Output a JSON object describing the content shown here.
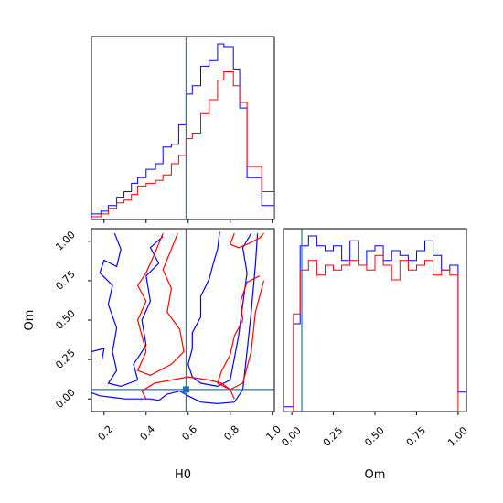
{
  "chart_data": {
    "type": "corner",
    "parameters": [
      "H0",
      "Om"
    ],
    "truth": {
      "H0": 0.59,
      "Om": 0.06
    },
    "colors": {
      "series_a": "#0000ff",
      "series_b": "#ff0000",
      "truth": "#1f77b4"
    },
    "panels": [
      {
        "id": "hist-H0",
        "type": "step-histogram",
        "xlim": [
          0.14,
          1.01
        ],
        "bin_edges": [
          0.14,
          0.185,
          0.22,
          0.26,
          0.295,
          0.33,
          0.36,
          0.4,
          0.445,
          0.48,
          0.52,
          0.555,
          0.59,
          0.62,
          0.66,
          0.7,
          0.74,
          0.77,
          0.815,
          0.845,
          0.88,
          0.95,
          1.01
        ],
        "series": [
          {
            "name": "",
            "color": "#0000ff",
            "values": [
              2,
              3,
              5,
              8,
              10,
              13,
              15,
              18,
              20,
              26,
              27,
              34,
              45,
              48,
              55,
              57,
              63,
              62,
              54,
              40,
              15,
              5
            ]
          },
          {
            "name": "",
            "color": "#ff0000",
            "values": [
              1,
              2,
              4,
              6,
              7,
              9,
              12,
              13,
              14,
              16,
              20,
              23,
              29,
              31,
              38,
              43,
              50,
              53,
              48,
              42,
              19,
              10
            ]
          }
        ]
      },
      {
        "id": "hist-Om",
        "type": "step-histogram",
        "xlim": [
          -0.05,
          1.05
        ],
        "bin_edges": [
          -0.05,
          0.01,
          0.05,
          0.1,
          0.15,
          0.2,
          0.25,
          0.3,
          0.35,
          0.4,
          0.45,
          0.5,
          0.55,
          0.6,
          0.65,
          0.7,
          0.75,
          0.8,
          0.85,
          0.9,
          0.95,
          1.0,
          1.05
        ],
        "series": [
          {
            "name": "",
            "color": "#0000ff",
            "values": [
              1,
              18,
              34,
              36,
              34,
              33,
              34,
              31,
              35,
              30,
              33,
              34,
              31,
              33,
              32,
              31,
              33,
              35,
              32,
              29,
              30,
              4
            ]
          },
          {
            "name": "",
            "color": "#ff0000",
            "values": [
              0,
              20,
              29,
              31,
              28,
              30,
              29,
              30,
              31,
              30,
              29,
              32,
              30,
              27,
              31,
              29,
              30,
              31,
              28,
              29,
              28,
              0
            ]
          }
        ]
      },
      {
        "id": "contour-H0-Om",
        "type": "contour",
        "x_param": "H0",
        "y_param": "Om",
        "xlim": [
          0.14,
          1.01
        ],
        "ylim": [
          -0.08,
          1.08
        ],
        "series": [
          {
            "name": "",
            "color": "#0000ff",
            "contours": [
              [
                [
                  0.12,
                  0.05
                ],
                [
                  0.18,
                  0.02
                ],
                [
                  0.3,
                  0.0
                ],
                [
                  0.42,
                  0.0
                ],
                [
                  0.46,
                  -0.01
                ],
                [
                  0.5,
                  0.03
                ],
                [
                  0.56,
                  0.05
                ],
                [
                  0.6,
                  0.02
                ],
                [
                  0.66,
                  -0.02
                ],
                [
                  0.74,
                  -0.03
                ],
                [
                  0.82,
                  -0.02
                ],
                [
                  0.86,
                  0.06
                ],
                [
                  0.88,
                  0.3
                ],
                [
                  0.9,
                  0.55
                ],
                [
                  0.92,
                  0.85
                ],
                [
                  0.93,
                  1.05
                ]
              ],
              [
                [
                  0.25,
                  1.05
                ],
                [
                  0.28,
                  0.95
                ],
                [
                  0.26,
                  0.84
                ],
                [
                  0.2,
                  0.88
                ],
                [
                  0.18,
                  0.8
                ],
                [
                  0.24,
                  0.72
                ],
                [
                  0.22,
                  0.6
                ],
                [
                  0.26,
                  0.45
                ],
                [
                  0.24,
                  0.3
                ],
                [
                  0.26,
                  0.18
                ],
                [
                  0.22,
                  0.1
                ],
                [
                  0.28,
                  0.08
                ],
                [
                  0.36,
                  0.12
                ],
                [
                  0.34,
                  0.22
                ],
                [
                  0.4,
                  0.34
                ],
                [
                  0.38,
                  0.5
                ],
                [
                  0.42,
                  0.62
                ],
                [
                  0.4,
                  0.78
                ],
                [
                  0.46,
                  0.86
                ],
                [
                  0.42,
                  0.96
                ],
                [
                  0.48,
                  1.03
                ]
              ],
              [
                [
                  0.75,
                  1.06
                ],
                [
                  0.74,
                  0.95
                ],
                [
                  0.72,
                  0.86
                ],
                [
                  0.7,
                  0.76
                ],
                [
                  0.66,
                  0.65
                ],
                [
                  0.66,
                  0.52
                ],
                [
                  0.62,
                  0.42
                ],
                [
                  0.62,
                  0.32
                ],
                [
                  0.6,
                  0.22
                ],
                [
                  0.62,
                  0.14
                ],
                [
                  0.66,
                  0.1
                ],
                [
                  0.74,
                  0.08
                ],
                [
                  0.8,
                  0.12
                ],
                [
                  0.82,
                  0.26
                ],
                [
                  0.84,
                  0.4
                ],
                [
                  0.86,
                  0.6
                ],
                [
                  0.88,
                  0.8
                ],
                [
                  0.86,
                  0.96
                ],
                [
                  0.9,
                  1.05
                ]
              ],
              [
                [
                  0.14,
                  0.3
                ],
                [
                  0.2,
                  0.32
                ],
                [
                  0.19,
                  0.25
                ]
              ]
            ]
          },
          {
            "name": "",
            "color": "#ff0000",
            "contours": [
              [
                [
                  0.4,
                  0.0
                ],
                [
                  0.38,
                  0.05
                ],
                [
                  0.44,
                  0.1
                ],
                [
                  0.52,
                  0.12
                ],
                [
                  0.6,
                  0.14
                ],
                [
                  0.7,
                  0.12
                ],
                [
                  0.76,
                  0.1
                ],
                [
                  0.8,
                  0.06
                ],
                [
                  0.82,
                  0.0
                ]
              ],
              [
                [
                  0.48,
                  1.05
                ],
                [
                  0.44,
                  0.92
                ],
                [
                  0.4,
                  0.8
                ],
                [
                  0.36,
                  0.72
                ],
                [
                  0.4,
                  0.62
                ],
                [
                  0.36,
                  0.5
                ],
                [
                  0.38,
                  0.4
                ],
                [
                  0.4,
                  0.3
                ],
                [
                  0.36,
                  0.18
                ],
                [
                  0.42,
                  0.15
                ],
                [
                  0.52,
                  0.22
                ],
                [
                  0.58,
                  0.3
                ],
                [
                  0.56,
                  0.44
                ],
                [
                  0.5,
                  0.55
                ],
                [
                  0.52,
                  0.7
                ],
                [
                  0.48,
                  0.82
                ],
                [
                  0.52,
                  0.95
                ],
                [
                  0.55,
                  1.05
                ]
              ],
              [
                [
                  0.82,
                  1.05
                ],
                [
                  0.8,
                  0.98
                ],
                [
                  0.84,
                  0.96
                ],
                [
                  0.88,
                  0.98
                ],
                [
                  0.94,
                  1.02
                ],
                [
                  0.96,
                  1.05
                ]
              ],
              [
                [
                  0.94,
                  0.78
                ],
                [
                  0.88,
                  0.74
                ],
                [
                  0.85,
                  0.62
                ],
                [
                  0.86,
                  0.5
                ],
                [
                  0.82,
                  0.4
                ],
                [
                  0.8,
                  0.28
                ],
                [
                  0.76,
                  0.18
                ],
                [
                  0.74,
                  0.1
                ],
                [
                  0.8,
                  0.06
                ],
                [
                  0.86,
                  0.1
                ],
                [
                  0.9,
                  0.3
                ],
                [
                  0.92,
                  0.55
                ],
                [
                  0.96,
                  0.75
                ]
              ]
            ]
          }
        ]
      }
    ],
    "x_axis_labels": [
      "H0",
      "Om"
    ],
    "y_axis_label": "Om",
    "tick_labels": {
      "H0": [
        "0.2",
        "0.4",
        "0.6",
        "0.8",
        "1.0"
      ],
      "Om_y": [
        "0.00",
        "0.25",
        "0.50",
        "0.75",
        "1.00"
      ],
      "Om_x": [
        "0.00",
        "0.25",
        "0.50",
        "0.75",
        "1.00"
      ]
    }
  }
}
